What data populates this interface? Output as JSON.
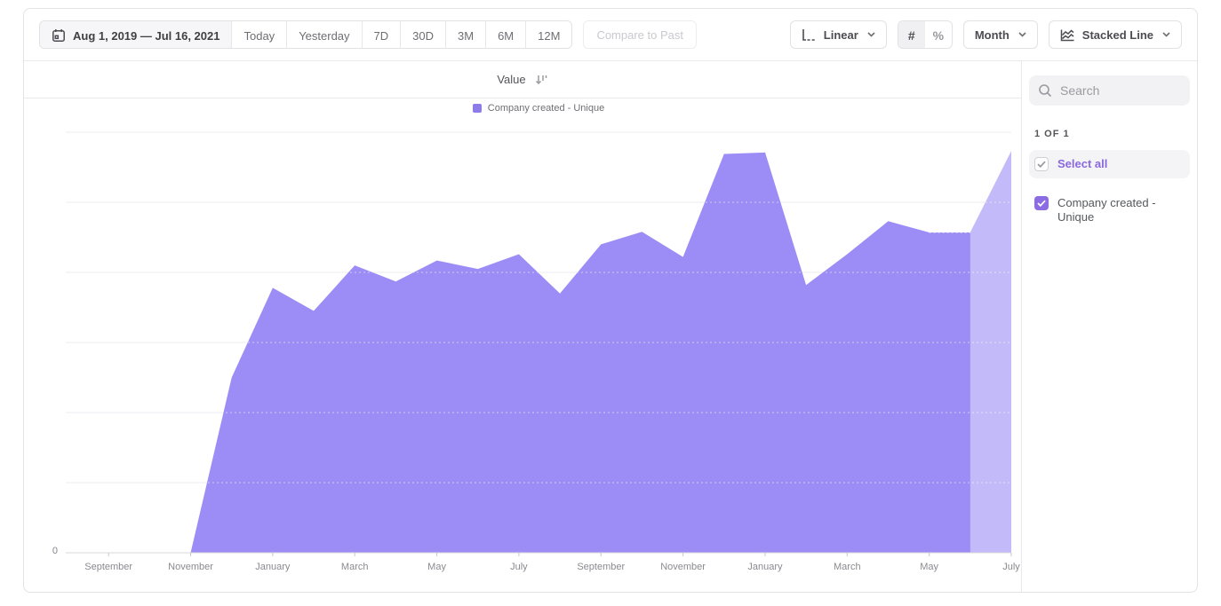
{
  "toolbar": {
    "date_range": "Aug 1, 2019 — Jul 16, 2021",
    "quick_ranges": [
      "Today",
      "Yesterday",
      "7D",
      "30D",
      "3M",
      "6M",
      "12M"
    ],
    "compare_label": "Compare to Past",
    "scale_dropdown": "Linear",
    "value_format_options": [
      "#",
      "%"
    ],
    "value_format_selected": "#",
    "interval_dropdown": "Month",
    "chart_type_dropdown": "Stacked Line"
  },
  "chart_header": {
    "sort_column": "Value"
  },
  "legend": {
    "label": "Company created - Unique"
  },
  "chart_data": {
    "type": "area",
    "title": "",
    "x": [
      "Aug 2019",
      "Sep 2019",
      "Oct 2019",
      "Nov 2019",
      "Dec 2019",
      "Jan 2020",
      "Feb 2020",
      "Mar 2020",
      "Apr 2020",
      "May 2020",
      "Jun 2020",
      "Jul 2020",
      "Aug 2020",
      "Sep 2020",
      "Oct 2020",
      "Nov 2020",
      "Dec 2020",
      "Jan 2021",
      "Feb 2021",
      "Mar 2021",
      "Apr 2021",
      "May 2021",
      "Jun 2021",
      "Jul 2021"
    ],
    "series": [
      {
        "name": "Company created - Unique",
        "values": [
          0,
          0,
          0,
          0,
          2.5,
          3.78,
          3.45,
          4.1,
          3.87,
          4.17,
          4.05,
          4.26,
          3.7,
          4.4,
          4.58,
          4.22,
          5.69,
          5.71,
          3.82,
          4.26,
          4.73,
          4.57,
          4.57,
          5.73
        ]
      }
    ],
    "value_units": "gridline units (y axis unlabeled except 0)",
    "ylim": [
      0,
      6
    ],
    "y_tick_labels": [
      "0"
    ],
    "x_tick_labels": [
      "September",
      "November",
      "January",
      "March",
      "May",
      "July",
      "September",
      "November",
      "January",
      "March",
      "May",
      "July"
    ],
    "x_tick_indices": [
      1,
      3,
      5,
      7,
      9,
      11,
      13,
      15,
      17,
      19,
      21,
      23
    ],
    "gridlines": 6,
    "legend_position": "top-center",
    "incomplete_period_from_index": 22,
    "dashed_top_segment_from_index": 21
  },
  "sidebar": {
    "search_placeholder": "Search",
    "count_label": "1 OF 1",
    "select_all_label": "Select all",
    "items": [
      {
        "label": "Company created - Unique",
        "checked": true
      }
    ]
  },
  "colors": {
    "area_fill": "#9c8df6",
    "incomplete_overlay": "rgba(255,255,255,0.40)",
    "legend_swatch": "#8d7ce8",
    "checkbox_purple": "#8b6ce2",
    "select_all_text": "#8a68e0",
    "gridline": "#ededf0",
    "axis_line": "#d8d8da"
  }
}
